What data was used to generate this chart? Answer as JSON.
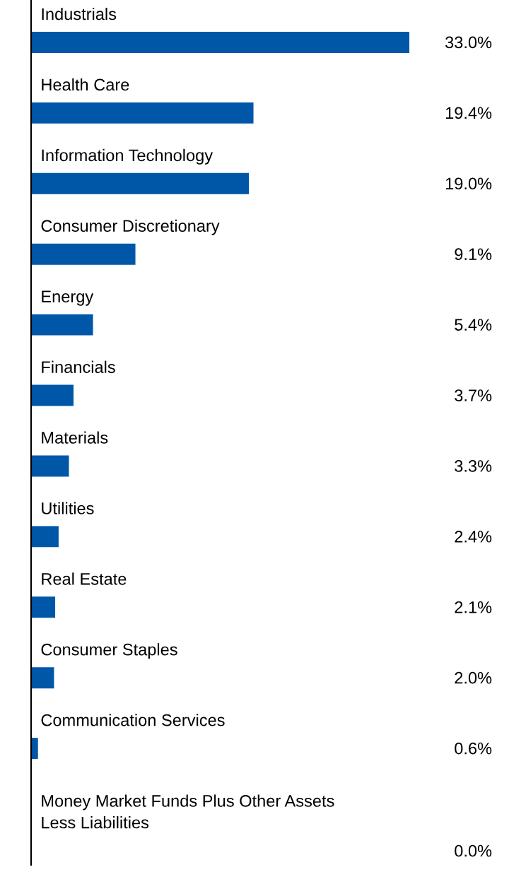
{
  "chart_data": {
    "type": "bar",
    "orientation": "horizontal",
    "categories": [
      "Industrials",
      "Health Care",
      "Information Technology",
      "Consumer Discretionary",
      "Energy",
      "Financials",
      "Materials",
      "Utilities",
      "Real Estate",
      "Consumer Staples",
      "Communication Services",
      "Money Market Funds Plus Other Assets\nLess Liabilities"
    ],
    "values": [
      33.0,
      19.4,
      19.0,
      9.1,
      5.4,
      3.7,
      3.3,
      2.4,
      2.1,
      2.0,
      0.6,
      0.0
    ],
    "value_labels": [
      "33.0%",
      "19.4%",
      "19.0%",
      "9.1%",
      "5.4%",
      "3.7%",
      "3.3%",
      "2.4%",
      "2.1%",
      "2.0%",
      "0.6%",
      "0.0%"
    ],
    "color": "#0057a8"
  }
}
